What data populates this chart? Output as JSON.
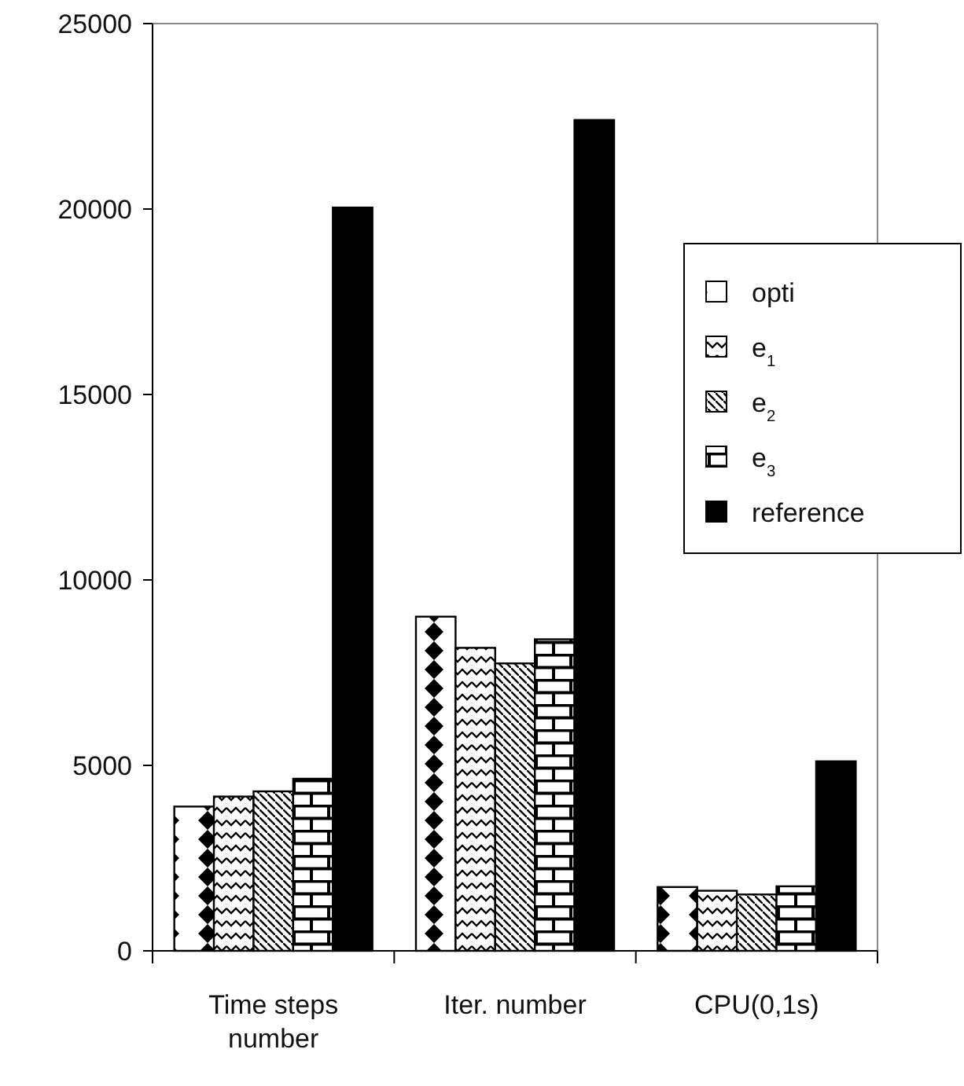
{
  "chart_data": {
    "type": "bar",
    "categories": [
      "Time steps number",
      "Iter. number",
      "CPU(0,1s)"
    ],
    "series": [
      {
        "name": "opti",
        "color": "#000000",
        "values": [
          3890,
          9010,
          1720
        ]
      },
      {
        "name": "e$_{1}$",
        "color": "#000000",
        "values": [
          4160,
          8170,
          1620
        ]
      },
      {
        "name": "e$_{2}$",
        "color": "#000000",
        "values": [
          4300,
          7750,
          1520
        ]
      },
      {
        "name": "e$_{3}$",
        "color": "#000000",
        "values": [
          4640,
          8400,
          1740
        ]
      },
      {
        "name": "reference",
        "color": "#000000",
        "values": [
          20040,
          22400,
          5110
        ]
      }
    ],
    "ylim": [
      0,
      25000
    ],
    "yticks": [
      0,
      5000,
      10000,
      15000,
      20000,
      25000
    ],
    "grid": false,
    "legend": "right"
  }
}
